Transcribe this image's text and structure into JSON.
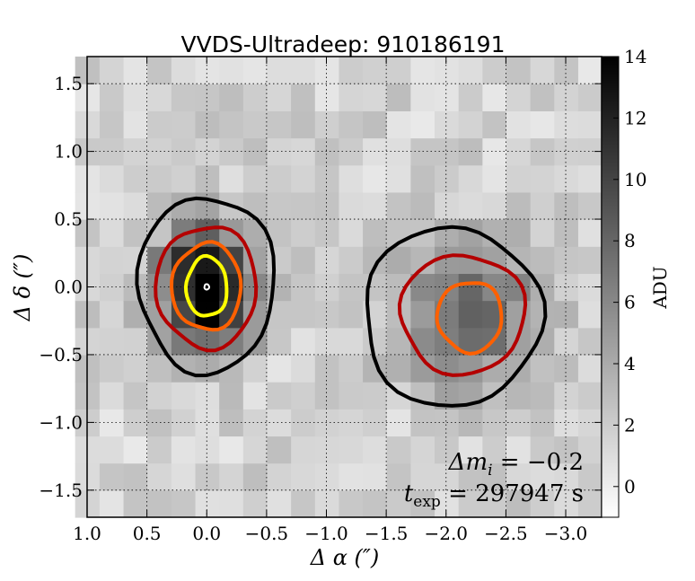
{
  "chart_data": {
    "type": "heatmap",
    "title": "VVDS-Ultradeep: 910186191",
    "xlabel": "Δ α  (″)",
    "ylabel": "Δ δ  (″)",
    "xlim": [
      1.0,
      -3.3
    ],
    "ylim": [
      -1.7,
      1.7
    ],
    "x_ticks": [
      1.0,
      0.5,
      0.0,
      -0.5,
      -1.0,
      -1.5,
      -2.0,
      -2.5,
      -3.0
    ],
    "x_tick_labels": [
      "1.0",
      "0.5",
      "0.0",
      "−0.5",
      "−1.0",
      "−1.5",
      "−2.0",
      "−2.5",
      "−3.0"
    ],
    "y_ticks": [
      1.5,
      1.0,
      0.5,
      0.0,
      -0.5,
      -1.0,
      -1.5
    ],
    "y_tick_labels": [
      "1.5",
      "1.0",
      "0.5",
      "0.0",
      "−0.5",
      "−1.0",
      "−1.5"
    ],
    "grid": true,
    "colorbar": {
      "label": "ADU",
      "range": [
        -1,
        14
      ],
      "ticks": [
        0,
        2,
        4,
        6,
        8,
        10,
        12,
        14
      ],
      "tick_labels": [
        "0",
        "2",
        "4",
        "6",
        "8",
        "10",
        "12",
        "14"
      ],
      "colormap": "gray_r"
    },
    "sources": [
      {
        "name": "source-1",
        "center": [
          0.0,
          0.0
        ],
        "peak_adu": 14,
        "sigma_x": 0.28,
        "sigma_y": 0.3
      },
      {
        "name": "source-2",
        "center": [
          -2.2,
          -0.22
        ],
        "peak_adu": 7,
        "sigma_x": 0.4,
        "sigma_y": 0.36
      }
    ],
    "contours": [
      {
        "source": "source-1",
        "level": "outer",
        "color": "#000000",
        "rx": 0.57,
        "ry": 0.65,
        "cx": 0.0,
        "cy": 0.02
      },
      {
        "source": "source-1",
        "level": "mid",
        "color": "#b40000",
        "rx": 0.42,
        "ry": 0.45,
        "cx": 0.0,
        "cy": 0.0
      },
      {
        "source": "source-1",
        "level": "inner",
        "color": "#ff6000",
        "rx": 0.29,
        "ry": 0.32,
        "cx": 0.0,
        "cy": 0.0
      },
      {
        "source": "source-1",
        "level": "core",
        "color": "#ffff00",
        "rx": 0.17,
        "ry": 0.22,
        "cx": 0.0,
        "cy": 0.0
      },
      {
        "source": "source-1",
        "level": "peak",
        "color": "#ffffff",
        "rx": 0.02,
        "ry": 0.02,
        "cx": 0.0,
        "cy": 0.0
      },
      {
        "source": "source-2",
        "level": "outer",
        "color": "#000000",
        "rx": 0.74,
        "ry": 0.66,
        "cx": -2.05,
        "cy": -0.22
      },
      {
        "source": "source-2",
        "level": "mid",
        "color": "#b40000",
        "rx": 0.52,
        "ry": 0.44,
        "cx": -2.14,
        "cy": -0.2
      },
      {
        "source": "source-2",
        "level": "inner",
        "color": "#ff6000",
        "rx": 0.27,
        "ry": 0.26,
        "cx": -2.2,
        "cy": -0.22
      }
    ],
    "annotations": {
      "delta_m": "Δm",
      "delta_m_sub": "i",
      "delta_m_value": " = −0.2",
      "texp": "t",
      "texp_sub": "exp",
      "texp_value": " = 297947 s"
    }
  }
}
